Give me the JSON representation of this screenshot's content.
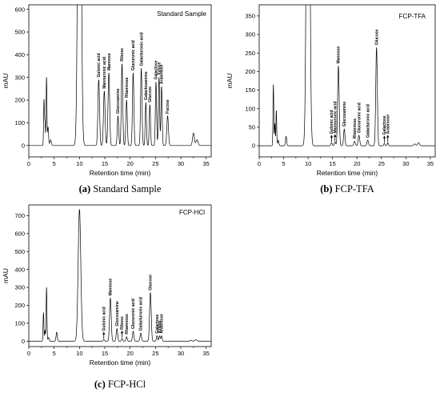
{
  "chart_data": [
    {
      "type": "line",
      "panel_label": "Standard Sample",
      "caption_letter": "(a)",
      "caption_text": "Standard Sample",
      "xlabel": "Retention time (min)",
      "ylabel": "mAU",
      "xlim": [
        0,
        36
      ],
      "ylim": [
        -50,
        620
      ],
      "xticks": [
        0,
        5,
        10,
        15,
        20,
        25,
        30,
        35
      ],
      "yticks": [
        0,
        100,
        200,
        300,
        400,
        500,
        600
      ],
      "baseline": 0,
      "peaks": [
        {
          "x": 3.0,
          "y": 200,
          "w": 0.08
        },
        {
          "x": 3.2,
          "y": 100,
          "w": 0.08
        },
        {
          "x": 3.5,
          "y": 300,
          "w": 0.08
        },
        {
          "x": 3.8,
          "y": 80,
          "w": 0.1
        },
        {
          "x": 4.3,
          "y": 25,
          "w": 0.15
        },
        {
          "x": 10.0,
          "y": 2400,
          "w": 0.28
        },
        {
          "x": 13.8,
          "y": 290,
          "w": 0.16,
          "label": "Gulonic acid"
        },
        {
          "x": 14.9,
          "y": 240,
          "w": 0.16,
          "label": "Mannuronic acid"
        },
        {
          "x": 15.8,
          "y": 320,
          "w": 0.16,
          "label": "Mannose"
        },
        {
          "x": 17.6,
          "y": 130,
          "w": 0.14,
          "label": "Glucosamine"
        },
        {
          "x": 18.4,
          "y": 360,
          "w": 0.14,
          "label": "Ribose"
        },
        {
          "x": 19.3,
          "y": 200,
          "w": 0.14,
          "label": "Rhamnose"
        },
        {
          "x": 20.6,
          "y": 320,
          "w": 0.14,
          "label": "Glucuronic acid"
        },
        {
          "x": 22.2,
          "y": 340,
          "w": 0.14,
          "label": "Galacturonic acid"
        },
        {
          "x": 23.1,
          "y": 190,
          "w": 0.12,
          "label": "Galactosamine"
        },
        {
          "x": 23.9,
          "y": 180,
          "w": 0.12,
          "label": "Glucose"
        },
        {
          "x": 25.1,
          "y": 280,
          "w": 0.12,
          "label": "Galactose"
        },
        {
          "x": 25.7,
          "y": 300,
          "w": 0.12,
          "label": "Xylose"
        },
        {
          "x": 26.2,
          "y": 260,
          "w": 0.12,
          "label": "Arabinose"
        },
        {
          "x": 27.4,
          "y": 130,
          "w": 0.16,
          "label": "Fucose"
        },
        {
          "x": 32.5,
          "y": 55,
          "w": 0.18
        },
        {
          "x": 33.2,
          "y": 25,
          "w": 0.2
        }
      ]
    },
    {
      "type": "line",
      "panel_label": "FCP-TFA",
      "caption_letter": "(b)",
      "caption_text": "FCP-TFA",
      "xlabel": "Retention time (min)",
      "ylabel": "mAU",
      "xlim": [
        0,
        36
      ],
      "ylim": [
        -30,
        380
      ],
      "xticks": [
        0,
        5,
        10,
        15,
        20,
        25,
        30,
        35
      ],
      "yticks": [
        0,
        50,
        100,
        150,
        200,
        250,
        300,
        350
      ],
      "baseline": 0,
      "peaks": [
        {
          "x": 2.9,
          "y": 165,
          "w": 0.08
        },
        {
          "x": 3.2,
          "y": 60,
          "w": 0.08
        },
        {
          "x": 3.5,
          "y": 95,
          "w": 0.08
        },
        {
          "x": 3.9,
          "y": 15,
          "w": 0.12
        },
        {
          "x": 5.5,
          "y": 25,
          "w": 0.12
        },
        {
          "x": 10.0,
          "y": 1600,
          "w": 0.28
        },
        {
          "x": 14.8,
          "y": 8,
          "w": 0.14,
          "label": "Gulonic acid",
          "arrow": true
        },
        {
          "x": 15.5,
          "y": 10,
          "w": 0.14,
          "label": "Mannuronic acid",
          "arrow": true
        },
        {
          "x": 16.2,
          "y": 215,
          "w": 0.16,
          "label": "Mannose"
        },
        {
          "x": 17.4,
          "y": 45,
          "w": 0.14,
          "label": "Glucosamine"
        },
        {
          "x": 19.5,
          "y": 12,
          "w": 0.16,
          "label": "Rhamnose"
        },
        {
          "x": 20.4,
          "y": 28,
          "w": 0.16,
          "label": "Glucuronic acid"
        },
        {
          "x": 22.2,
          "y": 15,
          "w": 0.16,
          "label": "Galacturonic acid"
        },
        {
          "x": 24.0,
          "y": 265,
          "w": 0.16,
          "label": "Glucose"
        },
        {
          "x": 25.6,
          "y": 6,
          "w": 0.12,
          "label": "Galactose",
          "arrow": true
        },
        {
          "x": 26.3,
          "y": 8,
          "w": 0.12,
          "label": "Arabinose",
          "arrow": true
        },
        {
          "x": 31.8,
          "y": 5,
          "w": 0.2
        },
        {
          "x": 32.6,
          "y": 8,
          "w": 0.2
        }
      ]
    },
    {
      "type": "line",
      "panel_label": "FCP-HCl",
      "caption_letter": "(c)",
      "caption_text": "FCP-HCl",
      "xlabel": "Retention time (min)",
      "ylabel": "mAU",
      "xlim": [
        0,
        36
      ],
      "ylim": [
        -30,
        760
      ],
      "xticks": [
        0,
        5,
        10,
        15,
        20,
        25,
        30,
        35
      ],
      "yticks": [
        0,
        100,
        200,
        300,
        400,
        500,
        600,
        700
      ],
      "baseline": 0,
      "peaks": [
        {
          "x": 2.9,
          "y": 160,
          "w": 0.08
        },
        {
          "x": 3.2,
          "y": 60,
          "w": 0.08
        },
        {
          "x": 3.5,
          "y": 300,
          "w": 0.08
        },
        {
          "x": 3.9,
          "y": 20,
          "w": 0.12
        },
        {
          "x": 5.5,
          "y": 50,
          "w": 0.12
        },
        {
          "x": 10.0,
          "y": 735,
          "w": 0.26
        },
        {
          "x": 14.8,
          "y": 8,
          "w": 0.14,
          "label": "Gulonic acid",
          "arrow": true
        },
        {
          "x": 16.1,
          "y": 240,
          "w": 0.16,
          "label": "Mannose"
        },
        {
          "x": 17.4,
          "y": 70,
          "w": 0.14,
          "label": "Glucosamine"
        },
        {
          "x": 18.4,
          "y": 15,
          "w": 0.12,
          "label": "Ribose",
          "arrow": true
        },
        {
          "x": 19.3,
          "y": 25,
          "w": 0.12,
          "label": "Rhamnose"
        },
        {
          "x": 20.6,
          "y": 55,
          "w": 0.14,
          "label": "Glucuronic acid"
        },
        {
          "x": 22.1,
          "y": 45,
          "w": 0.14,
          "label": "Galacturonic acid"
        },
        {
          "x": 24.0,
          "y": 270,
          "w": 0.16,
          "label": "Glucose"
        },
        {
          "x": 25.3,
          "y": 30,
          "w": 0.12,
          "label": "Galactose"
        },
        {
          "x": 25.8,
          "y": 30,
          "w": 0.12,
          "label": "Xylose"
        },
        {
          "x": 26.2,
          "y": 30,
          "w": 0.12,
          "label": "Arabinose"
        },
        {
          "x": 32.0,
          "y": 5,
          "w": 0.2
        },
        {
          "x": 33.0,
          "y": 8,
          "w": 0.2
        }
      ]
    }
  ]
}
